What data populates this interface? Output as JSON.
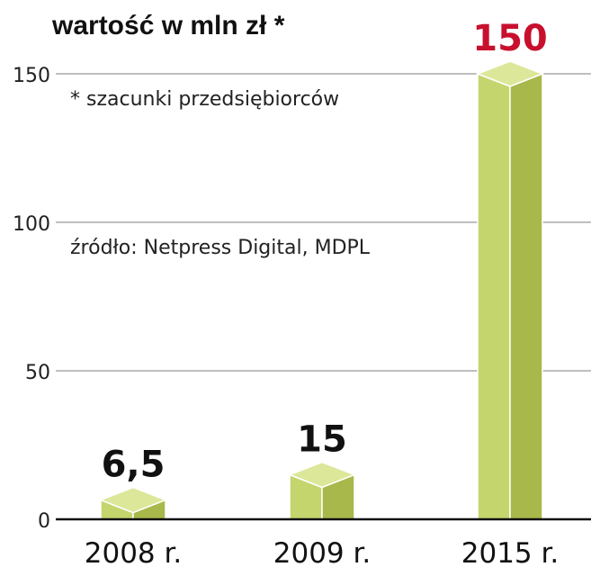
{
  "chart_data": {
    "type": "bar",
    "title": "wartość w mln zł *",
    "notes": [
      "* szacunki przedsiębiorców",
      "źródło: Netpress Digital, MDPL"
    ],
    "categories": [
      "2008 r.",
      "2009 r.",
      "2015 r."
    ],
    "values": [
      6.5,
      15,
      150
    ],
    "data_labels": [
      "6,5",
      "15",
      "150"
    ],
    "yticks": [
      0,
      50,
      100,
      150
    ],
    "ylim": [
      0,
      150
    ],
    "grid": true,
    "colors": {
      "bar_front": "#c5d56e",
      "bar_side": "#a8b84a",
      "bar_top": "#dde79a",
      "label": "#111111",
      "highlight_label": "#c8102e",
      "grid": "#999999",
      "axis": "#111111"
    },
    "highlight_index": 2
  }
}
